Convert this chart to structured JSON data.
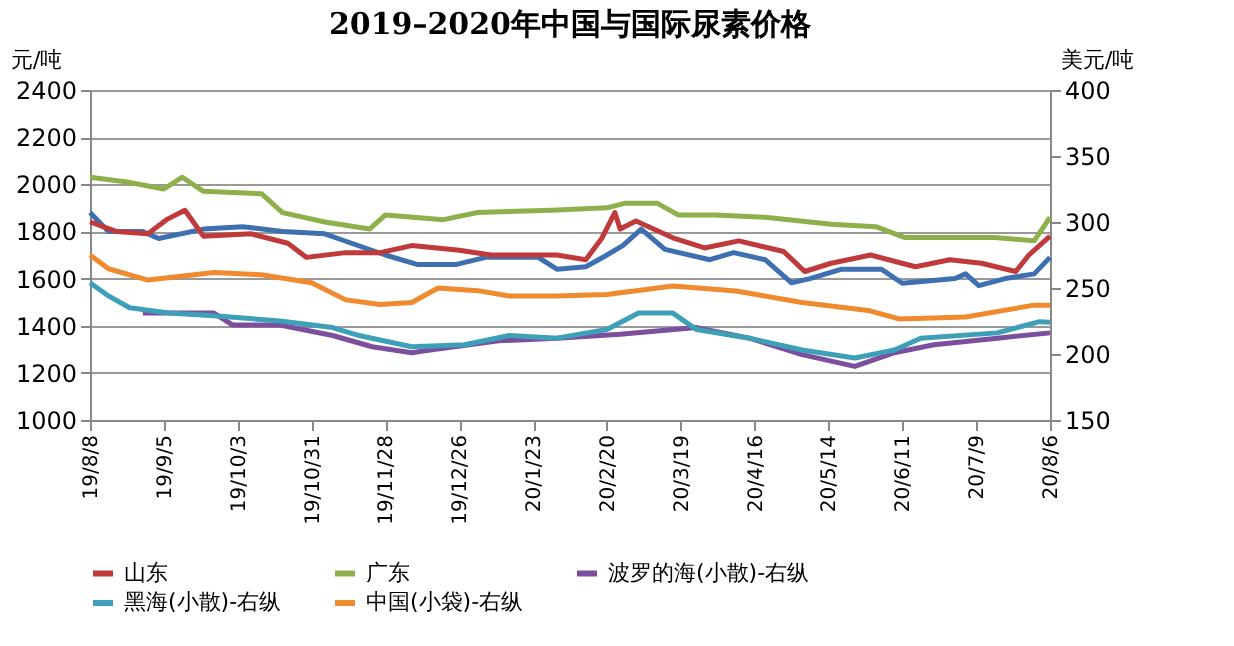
{
  "chart_data": {
    "type": "line",
    "title": "2019–2020年中国与国际尿素价格",
    "ylabel": "元/吨",
    "y2label": "美元/吨",
    "xlim": [
      "2019-08-08",
      "2020-08-06"
    ],
    "xticks": [
      {
        "value": "2019-08-08",
        "label": "19/8/8"
      },
      {
        "value": "2019-09-05",
        "label": "19/9/5"
      },
      {
        "value": "2019-10-03",
        "label": "19/10/3"
      },
      {
        "value": "2019-10-31",
        "label": "19/10/31"
      },
      {
        "value": "2019-11-28",
        "label": "19/11/28"
      },
      {
        "value": "2019-12-26",
        "label": "19/12/26"
      },
      {
        "value": "2020-01-23",
        "label": "20/1/23"
      },
      {
        "value": "2020-02-20",
        "label": "20/2/20"
      },
      {
        "value": "2020-03-19",
        "label": "20/3/19"
      },
      {
        "value": "2020-04-16",
        "label": "20/4/16"
      },
      {
        "value": "2020-05-14",
        "label": "20/5/14"
      },
      {
        "value": "2020-06-11",
        "label": "20/6/11"
      },
      {
        "value": "2020-07-09",
        "label": "20/7/9"
      },
      {
        "value": "2020-08-06",
        "label": "20/8/6"
      }
    ],
    "ylim": [
      1000,
      2400
    ],
    "yticks": [
      1000,
      1200,
      1400,
      1600,
      1800,
      2000,
      2200,
      2400
    ],
    "y2lim": [
      150,
      400
    ],
    "y2ticks": [
      150,
      200,
      250,
      300,
      350,
      400
    ],
    "grid": "y",
    "legend": "bottom",
    "line_style": "solid",
    "marker": "none",
    "series": [
      {
        "color": "#3e6fb0",
        "x": [
          "2019-08-08",
          "2019-08-15",
          "2019-08-28",
          "2019-09-03",
          "2019-09-20",
          "2019-10-05",
          "2019-10-20",
          "2019-11-05",
          "2019-11-10",
          "2019-11-28",
          "2019-12-10",
          "2019-12-25",
          "2020-01-05",
          "2020-01-25",
          "2020-02-01",
          "2020-02-12",
          "2020-02-20",
          "2020-02-26",
          "2020-03-04",
          "2020-03-13",
          "2020-03-30",
          "2020-04-08",
          "2020-04-20",
          "2020-04-30",
          "2020-05-07",
          "2020-05-19",
          "2020-06-03",
          "2020-06-11",
          "2020-07-01",
          "2020-07-05",
          "2020-07-10",
          "2020-07-20",
          "2020-07-31",
          "2020-08-06"
        ],
        "values": [
          1880,
          1800,
          1800,
          1770,
          1810,
          1820,
          1800,
          1790,
          1770,
          1700,
          1660,
          1660,
          1690,
          1690,
          1640,
          1650,
          1700,
          1740,
          1810,
          1724,
          1680,
          1710,
          1680,
          1582,
          1600,
          1640,
          1640,
          1580,
          1600,
          1620,
          1570,
          1600,
          1620,
          1690
        ]
      },
      {
        "name": "山东",
        "color": "#c0393b",
        "x": [
          "2019-08-08",
          "2019-08-18",
          "2019-08-30",
          "2019-09-06",
          "2019-09-13",
          "2019-09-20",
          "2019-10-08",
          "2019-10-22",
          "2019-10-29",
          "2019-11-13",
          "2019-11-26",
          "2019-12-08",
          "2019-12-26",
          "2020-01-07",
          "2020-02-01",
          "2020-02-12",
          "2020-02-18",
          "2020-02-23",
          "2020-02-25",
          "2020-03-02",
          "2020-03-16",
          "2020-03-28",
          "2020-04-10",
          "2020-04-27",
          "2020-05-05",
          "2020-05-15",
          "2020-05-30",
          "2020-06-16",
          "2020-06-29",
          "2020-07-11",
          "2020-07-24",
          "2020-07-29",
          "2020-08-06"
        ],
        "values": [
          1840,
          1800,
          1790,
          1850,
          1890,
          1780,
          1790,
          1750,
          1690,
          1710,
          1710,
          1740,
          1720,
          1700,
          1700,
          1680,
          1770,
          1880,
          1810,
          1844,
          1773,
          1730,
          1760,
          1715,
          1630,
          1665,
          1700,
          1650,
          1680,
          1665,
          1630,
          1700,
          1780
        ]
      },
      {
        "name": "广东",
        "color": "#8db04a",
        "x": [
          "2019-08-08",
          "2019-08-22",
          "2019-09-05",
          "2019-09-12",
          "2019-09-20",
          "2019-10-12",
          "2019-10-20",
          "2019-11-05",
          "2019-11-22",
          "2019-11-28",
          "2019-12-20",
          "2020-01-02",
          "2020-01-30",
          "2020-02-20",
          "2020-02-27",
          "2020-03-10",
          "2020-03-18",
          "2020-04-01",
          "2020-04-20",
          "2020-05-15",
          "2020-06-01",
          "2020-06-12",
          "2020-07-16",
          "2020-07-31",
          "2020-08-06"
        ],
        "values": [
          2030,
          2010,
          1980,
          2030,
          1970,
          1960,
          1880,
          1840,
          1810,
          1870,
          1850,
          1880,
          1890,
          1900,
          1920,
          1920,
          1870,
          1870,
          1860,
          1830,
          1820,
          1774,
          1774,
          1760,
          1860
        ]
      },
      {
        "name": "波罗的海(小散)-右纵",
        "axis": "y2",
        "color": "#7b4f9d",
        "x": [
          "2019-08-28",
          "2019-09-24",
          "2019-10-01",
          "2019-10-19",
          "2019-11-08",
          "2019-11-23",
          "2019-12-08",
          "2019-12-15",
          "2020-01-10",
          "2020-02-01",
          "2020-02-25",
          "2020-03-25",
          "2020-04-14",
          "2020-05-04",
          "2020-05-24",
          "2020-06-08",
          "2020-06-23",
          "2020-07-17",
          "2020-08-06"
        ],
        "values": [
          231,
          231,
          222,
          222,
          214,
          205.5,
          201,
          203,
          210,
          212,
          215,
          220,
          212,
          199.5,
          190.6,
          201,
          207,
          212,
          216
        ]
      },
      {
        "name": "黑海(小散)-右纵",
        "axis": "y2",
        "color": "#3da0b8",
        "x": [
          "2019-08-08",
          "2019-08-15",
          "2019-08-23",
          "2019-09-07",
          "2019-09-24",
          "2019-10-19",
          "2019-11-08",
          "2019-11-18",
          "2019-12-08",
          "2019-12-28",
          "2020-01-14",
          "2020-02-01",
          "2020-02-20",
          "2020-03-03",
          "2020-03-16",
          "2020-03-25",
          "2020-04-14",
          "2020-05-04",
          "2020-05-24",
          "2020-06-08",
          "2020-06-18",
          "2020-07-17",
          "2020-08-02",
          "2020-08-06"
        ],
        "values": [
          254,
          244,
          235,
          231,
          229,
          225,
          220,
          214,
          205.5,
          207,
          214,
          212,
          218.5,
          231,
          231,
          218.5,
          212,
          203,
          197,
          203,
          212,
          216,
          224.5,
          224
        ]
      },
      {
        "name": "中国(小袋)-右纵",
        "axis": "y2",
        "color": "#f08a2e",
        "x": [
          "2019-08-08",
          "2019-08-15",
          "2019-08-30",
          "2019-09-24",
          "2019-10-12",
          "2019-10-31",
          "2019-11-13",
          "2019-11-26",
          "2019-12-08",
          "2019-12-18",
          "2020-01-02",
          "2020-01-14",
          "2020-02-01",
          "2020-02-20",
          "2020-03-16",
          "2020-04-09",
          "2020-05-04",
          "2020-05-29",
          "2020-06-10",
          "2020-07-05",
          "2020-07-31",
          "2020-08-06"
        ],
        "values": [
          275,
          264.6,
          256,
          261.7,
          260,
          254,
          241,
          237.5,
          239,
          250,
          248,
          244,
          244,
          245,
          251.5,
          247.7,
          239,
          233,
          226.5,
          228,
          237,
          237
        ]
      }
    ]
  }
}
